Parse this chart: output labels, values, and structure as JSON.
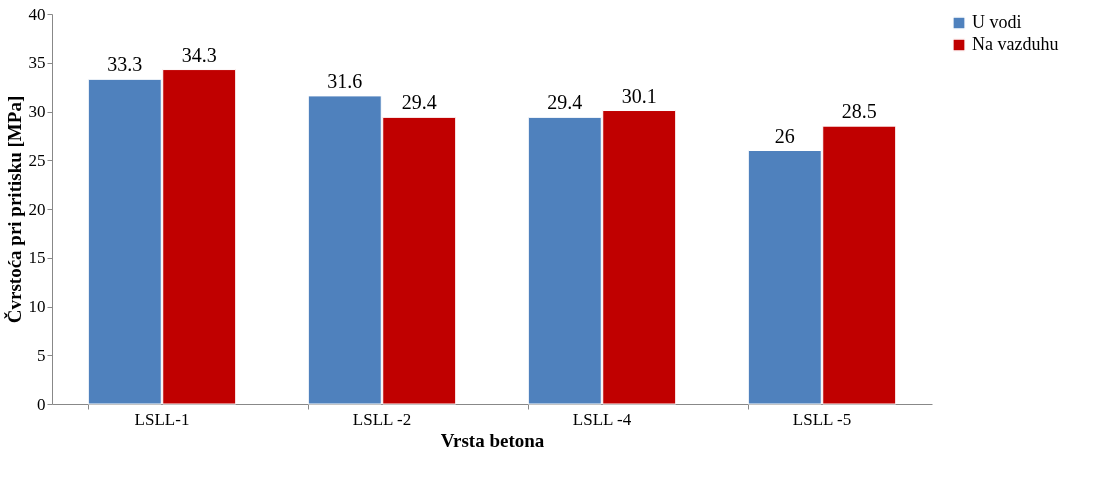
{
  "chart_data": {
    "type": "bar",
    "xlabel": "Vrsta betona",
    "ylabel": "Čvrstoća pri pritisku [MPa]",
    "categories": [
      "LSLL-1",
      "LSLL -2",
      "LSLL -4",
      "LSLL -5"
    ],
    "series": [
      {
        "name": "U  vodi",
        "color": "#4f81bd",
        "values": [
          33.3,
          31.6,
          29.4,
          26
        ]
      },
      {
        "name": "Na vazduhu",
        "color": "#c00000",
        "values": [
          34.3,
          29.4,
          30.1,
          28.5
        ]
      }
    ],
    "ylim": [
      0,
      40
    ],
    "yticks": [
      0,
      5,
      10,
      15,
      20,
      25,
      30,
      35,
      40
    ],
    "grid": false,
    "legend": "right",
    "data_labels": true
  }
}
